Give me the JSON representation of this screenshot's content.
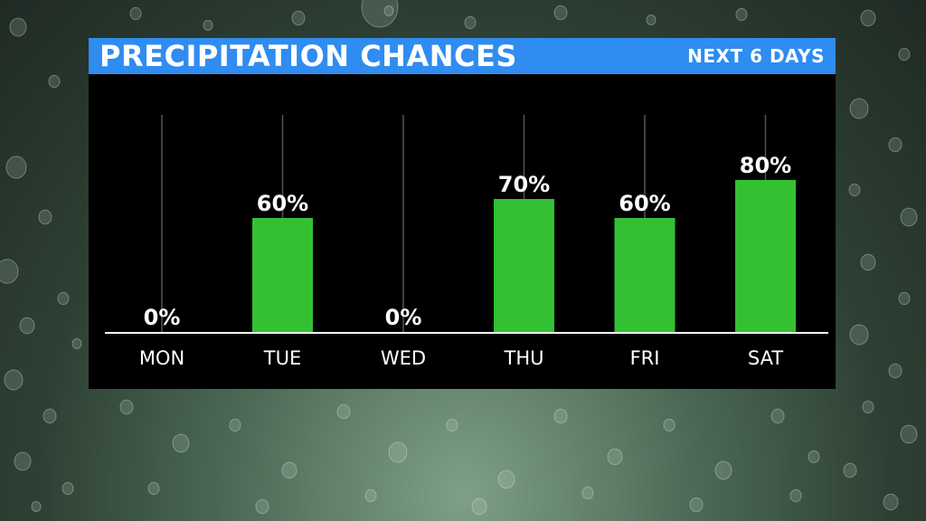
{
  "header": {
    "title": "PRECIPITATION CHANCES",
    "subtitle": "NEXT 6 DAYS"
  },
  "colors": {
    "header_bg": "#2f8cf0",
    "bar": "#33c133",
    "panel_bg": "#000000"
  },
  "chart_data": {
    "type": "bar",
    "title": "PRECIPITATION CHANCES",
    "subtitle": "NEXT 6 DAYS",
    "categories": [
      "MON",
      "TUE",
      "WED",
      "THU",
      "FRI",
      "SAT"
    ],
    "values": [
      0,
      60,
      0,
      70,
      60,
      80
    ],
    "value_labels": [
      "0%",
      "60%",
      "0%",
      "70%",
      "60%",
      "80%"
    ],
    "unit": "%",
    "ylim": [
      0,
      115
    ],
    "grid": "vertical guide line per category",
    "legend": "none"
  }
}
